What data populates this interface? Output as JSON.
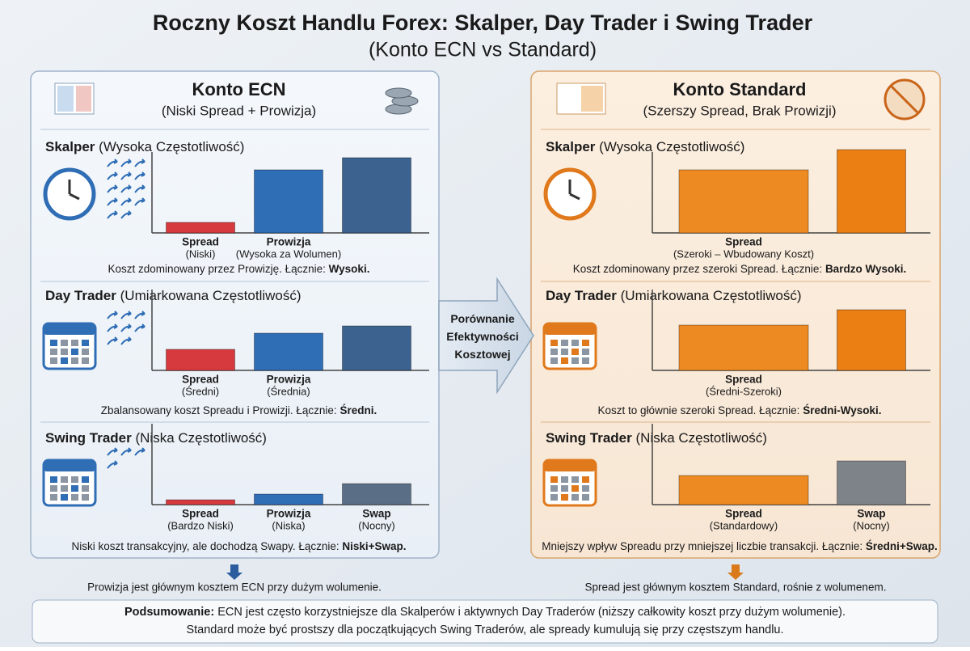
{
  "title": "Roczny Koszt Handlu Forex: Skalper, Day Trader i Swing Trader",
  "subtitle": "(Konto ECN vs Standard)",
  "comparison": "Porównanie Efektywności Kosztowej",
  "panels": [
    {
      "title": "Konto ECN",
      "subtitle": "(Niski Spread + Prowizja)",
      "color": "#2b5c9e",
      "ylim": [
        0,
        110
      ],
      "footer": "Prowizja jest głównym kosztem ECN przy dużym wolumenie.",
      "sections": [
        {
          "name": "Skalper",
          "qualifier": "(Wysoka Częstotliwość)",
          "note": "Koszt zdominowany przez Prowizję. Łącznie:",
          "total": "Wysoki.",
          "bars": [
            {
              "label": "Spread",
              "sublabel": "(Niski)",
              "value": 13,
              "color": "#d63a3e"
            },
            {
              "label": "Prowizja",
              "sublabel": "(Wysoka za Wolumen)",
              "value": 78,
              "color": "#2f6db5"
            },
            {
              "label": null,
              "sublabel": null,
              "value": 93,
              "color": "#3c6290"
            }
          ]
        },
        {
          "name": "Day Trader",
          "qualifier": "(Umiarkowana Częstotliwość)",
          "note": "Zbalansowany koszt Spreadu i Prowizji. Łącznie:",
          "total": "Średni.",
          "bars": [
            {
              "label": "Spread",
              "sublabel": "(Średni)",
              "value": 26,
              "color": "#d63a3e"
            },
            {
              "label": "Prowizja",
              "sublabel": "(Średnia)",
              "value": 46,
              "color": "#2f6db5"
            },
            {
              "label": null,
              "sublabel": null,
              "value": 55,
              "color": "#3c6290"
            }
          ]
        },
        {
          "name": "Swing Trader",
          "qualifier": "(Niska Częstotliwość)",
          "note": "Niski koszt transakcyjny, ale dochodzą Swapy. Łącznie:",
          "total": "Niski+Swap.",
          "bars": [
            {
              "label": "Spread",
              "sublabel": "(Bardzo Niski)",
              "value": 6,
              "color": "#d63a3e"
            },
            {
              "label": "Prowizja",
              "sublabel": "(Niska)",
              "value": 13,
              "color": "#2f6db5"
            },
            {
              "label": "Swap",
              "sublabel": "(Nocny)",
              "value": 26,
              "color": "#5a6f86"
            }
          ]
        }
      ]
    },
    {
      "title": "Konto Standard",
      "subtitle": "(Szerszy Spread, Brak Prowizji)",
      "color": "#d9791a",
      "ylim": [
        0,
        110
      ],
      "footer": "Spread jest głównym kosztem Standard, rośnie z wolumenem.",
      "sections": [
        {
          "name": "Skalper",
          "qualifier": "(Wysoka Częstotliwość)",
          "note": "Koszt zdominowany przez szeroki Spread. Łącznie:",
          "total": "Bardzo Wysoki.",
          "bars": [
            {
              "label": "Spread",
              "sublabel": "(Szeroki – Wbudowany Koszt)",
              "value": 78,
              "color": "#ee8a22"
            },
            {
              "label": null,
              "sublabel": null,
              "value": 103,
              "color": "#ec7f14"
            }
          ]
        },
        {
          "name": "Day Trader",
          "qualifier": "(Umiarkowana Częstotliwość)",
          "note": "Koszt to głównie szeroki Spread. Łącznie:",
          "total": "Średni-Wysoki.",
          "bars": [
            {
              "label": "Spread",
              "sublabel": "(Średni-Szeroki)",
              "value": 56,
              "color": "#ee8a22"
            },
            {
              "label": null,
              "sublabel": null,
              "value": 75,
              "color": "#ec7f14"
            }
          ]
        },
        {
          "name": "Swing Trader",
          "qualifier": "(Niska Częstotliwość)",
          "note": "Mniejszy wpływ Spreadu przy mniejszej liczbie transakcji. Łącznie:",
          "total": "Średni+Swap.",
          "bars": [
            {
              "label": "Spread",
              "sublabel": "(Standardowy)",
              "value": 36,
              "color": "#ee8a22"
            },
            {
              "label": "Swap",
              "sublabel": "(Nocny)",
              "value": 54,
              "color": "#7e838a"
            }
          ]
        }
      ]
    }
  ],
  "summary": {
    "label": "Podsumowanie:",
    "line1": "ECN jest często korzystniejsze dla Skalperów i aktywnych Day Traderów (niższy całkowity koszt przy dużym wolumenie).",
    "line2": "Standard może być prostszy dla początkujących Swing Traderów, ale spready kumulują się przy częstszym handlu."
  }
}
